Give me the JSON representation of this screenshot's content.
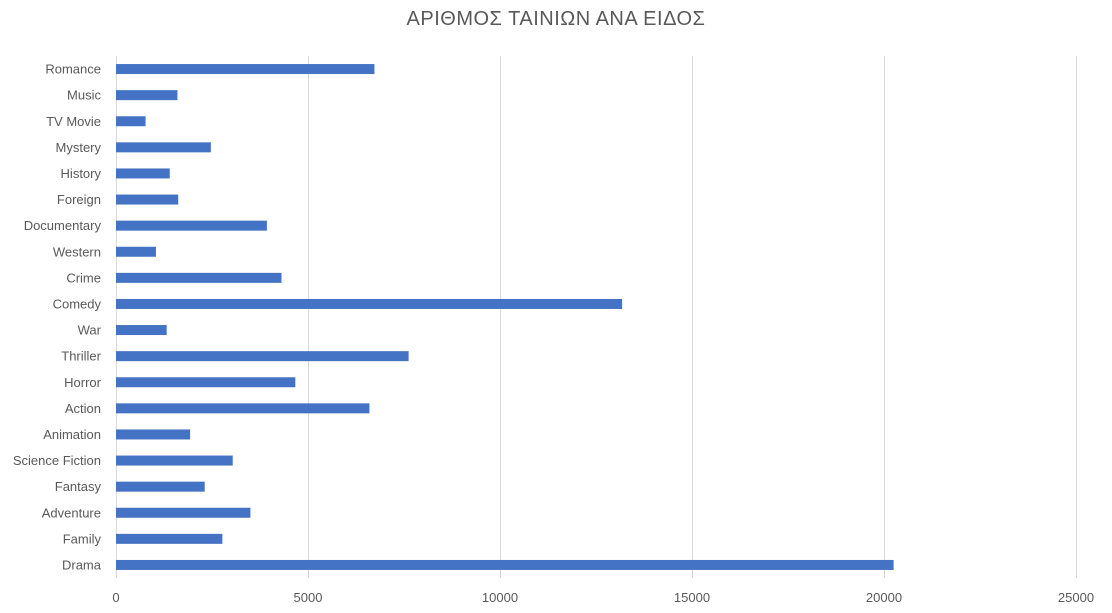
{
  "chart_data": {
    "type": "bar",
    "orientation": "horizontal",
    "title": "ΑΡΙΘΜΟΣ ΤΑΙΝΙΩΝ ΑΝΑ ΕΙΔΟΣ",
    "xlabel": "",
    "ylabel": "",
    "categories": [
      "Drama",
      "Family",
      "Adventure",
      "Fantasy",
      "Science Fiction",
      "Animation",
      "Action",
      "Horror",
      "Thriller",
      "War",
      "Comedy",
      "Crime",
      "Western",
      "Documentary",
      "Foreign",
      "History",
      "Mystery",
      "TV Movie",
      "Music",
      "Romance"
    ],
    "values": [
      20250,
      2770,
      3500,
      2310,
      3040,
      1930,
      6600,
      4670,
      7620,
      1320,
      13180,
      4310,
      1040,
      3930,
      1620,
      1400,
      2470,
      770,
      1600,
      6730
    ],
    "xticks": [
      0,
      5000,
      10000,
      15000,
      20000,
      25000
    ],
    "xlim": [
      0,
      25000
    ],
    "grid": "vertical",
    "legend": "none",
    "bar_color": "#4472C4",
    "gridline_color": "#D9D9D9",
    "text_color": "#595959"
  }
}
